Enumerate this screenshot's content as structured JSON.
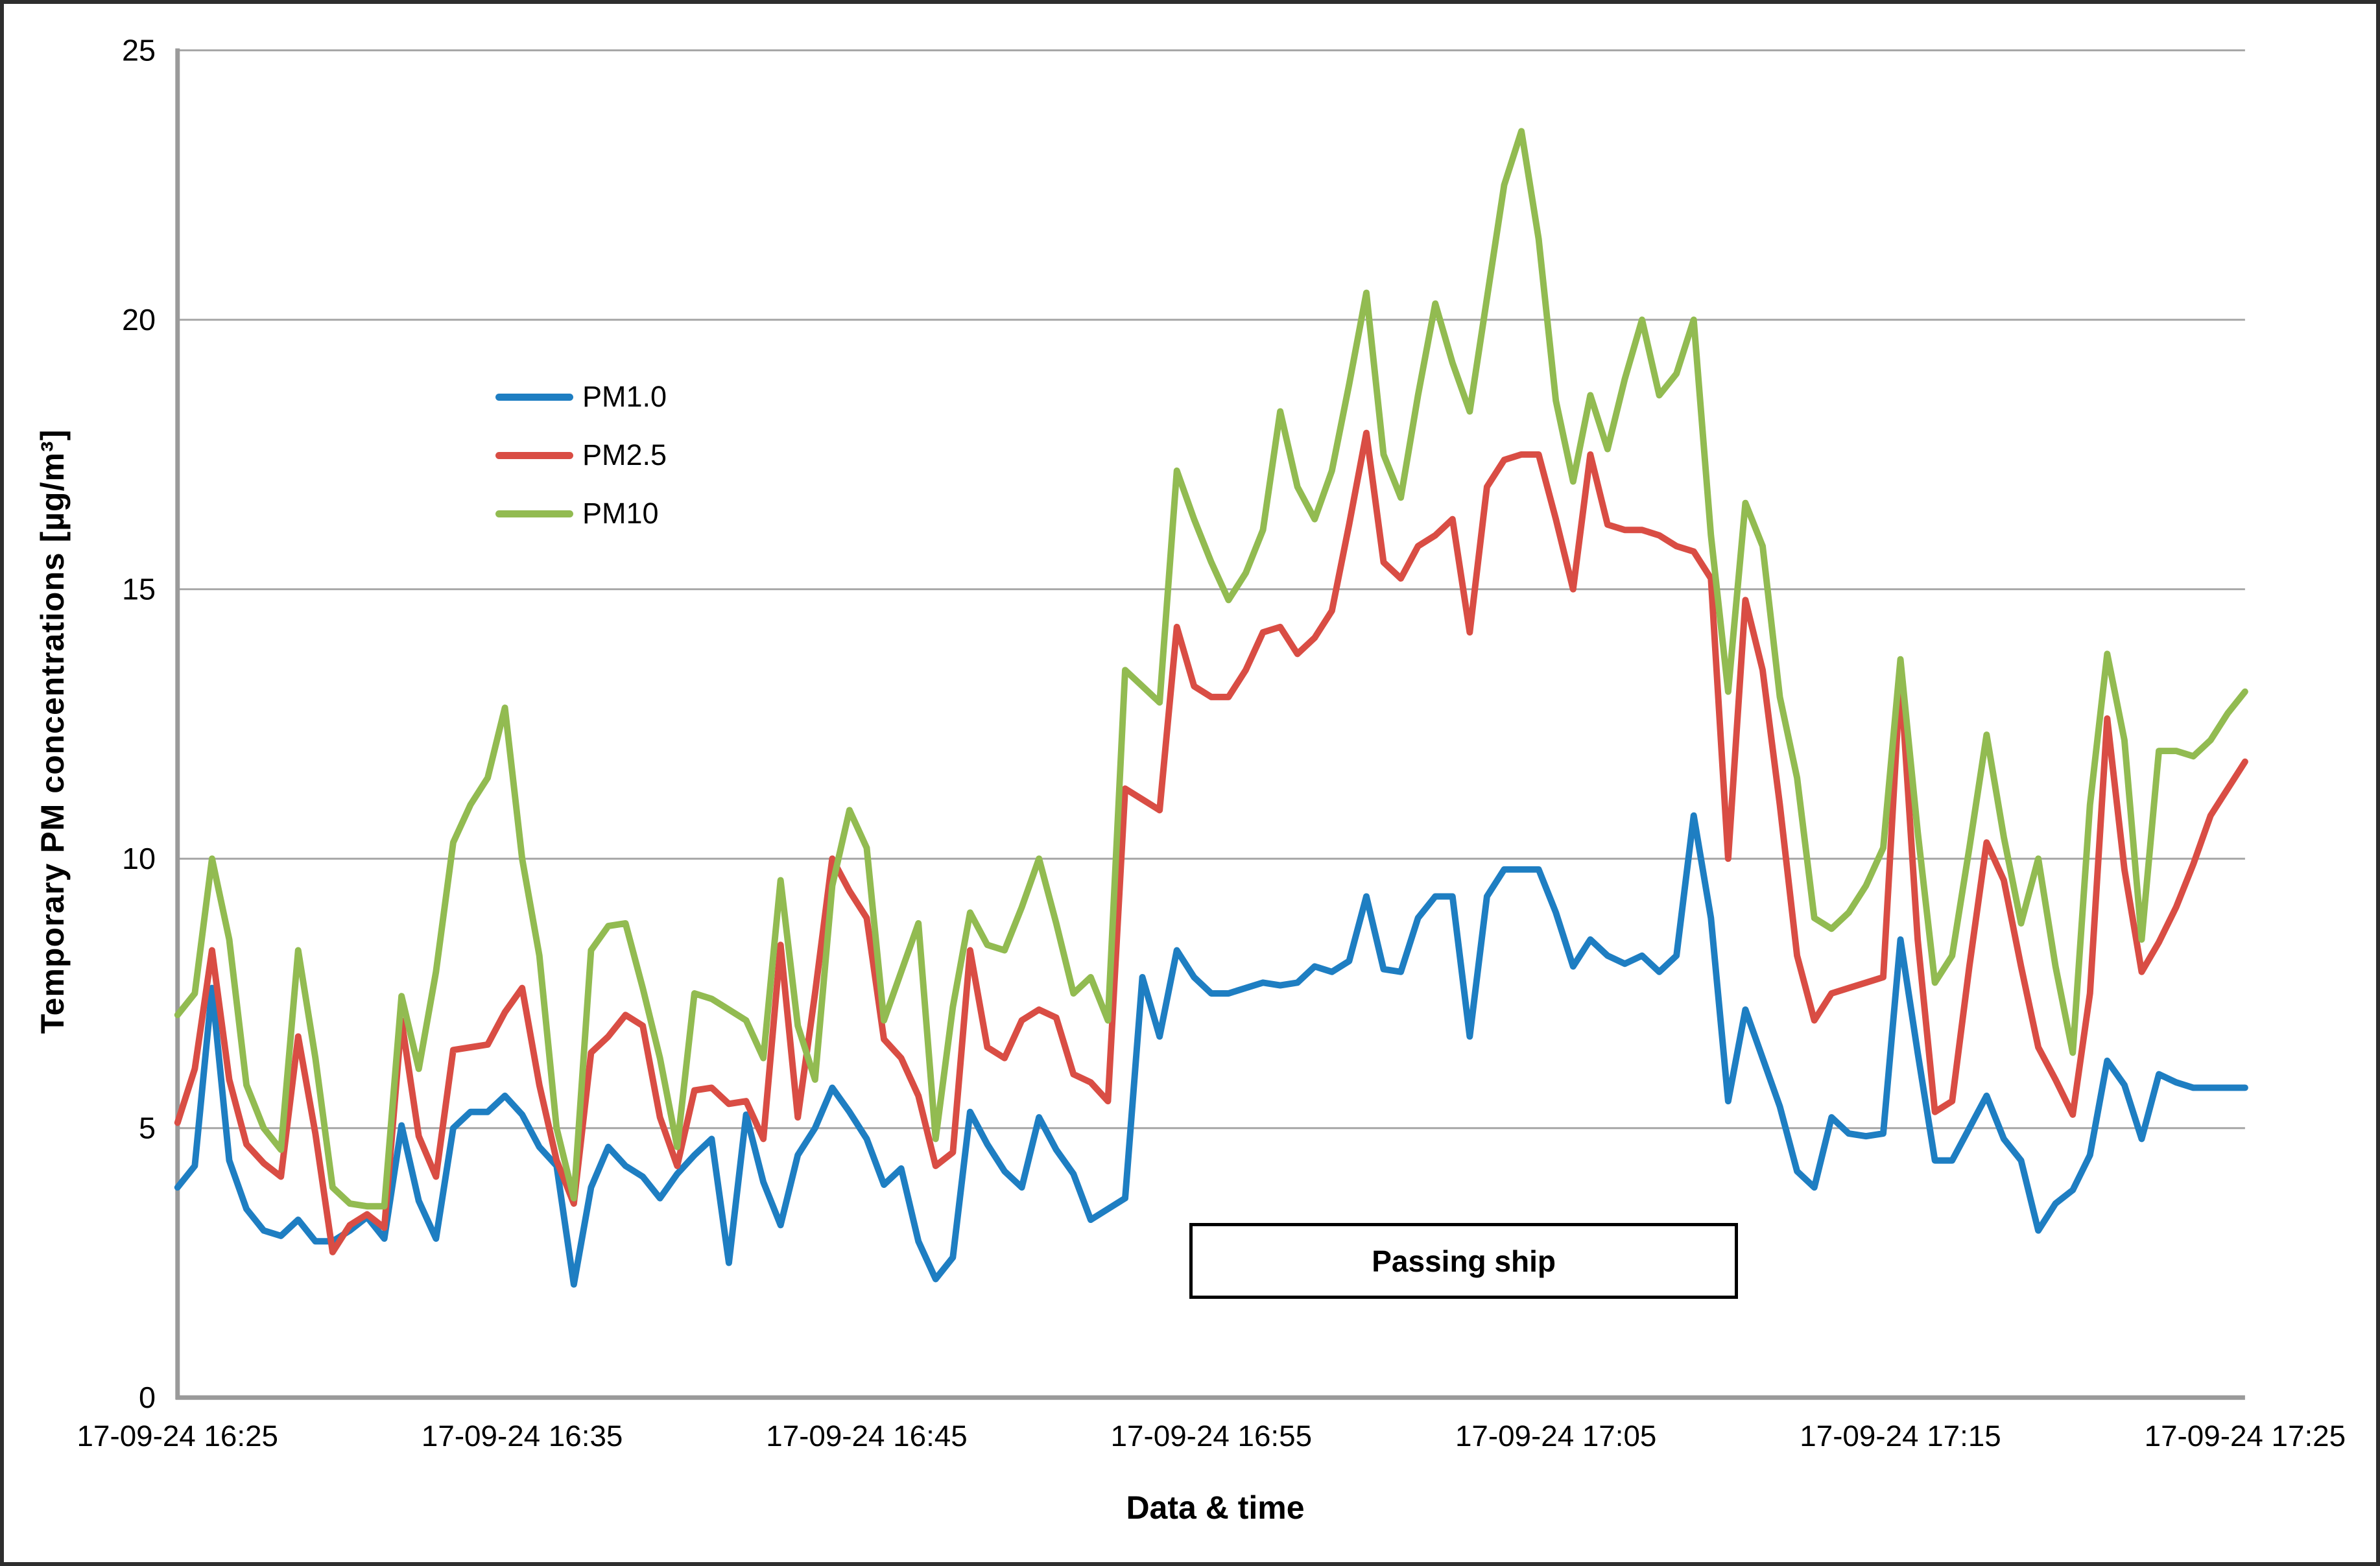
{
  "figure": {
    "x_axis_title": "Data & time",
    "y_axis_title": "Temporary PM concentrations  [µg/m³]"
  },
  "colors": {
    "axis": "#9a9a9a",
    "grid": "#a6a6a6",
    "border": "#2e2e2e",
    "background": "#ffffff",
    "pm1": "#1e7ec2",
    "pm25": "#d94d44",
    "pm10": "#92bb51"
  },
  "chart_data": {
    "type": "line",
    "title": "",
    "xlabel": "Data & time",
    "ylabel": "Temporary PM concentrations  [µg/m³]",
    "ylim": [
      0,
      25
    ],
    "yticks": [
      0,
      5,
      10,
      15,
      20,
      25
    ],
    "grid": "horizontal",
    "legend_position": "inside-upper-left",
    "n_points": 121,
    "sample_interval_seconds": 30,
    "x_tick_indices": [
      0,
      20,
      40,
      60,
      80,
      100,
      120
    ],
    "x_tick_labels": [
      "17-09-24 16:25",
      "17-09-24 16:35",
      "17-09-24 16:45",
      "17-09-24 16:55",
      "17-09-24 17:05",
      "17-09-24 17:15",
      "17-09-24 17:25"
    ],
    "series": [
      {
        "name": "PM1.0",
        "color": "#1e7ec2",
        "values": [
          3.9,
          4.3,
          7.6,
          4.4,
          3.5,
          3.1,
          3.0,
          3.3,
          2.9,
          2.9,
          3.1,
          3.35,
          2.95,
          5.05,
          3.65,
          2.95,
          5.0,
          5.3,
          5.3,
          5.6,
          5.25,
          4.65,
          4.3,
          2.1,
          3.9,
          4.65,
          4.3,
          4.1,
          3.7,
          4.15,
          4.5,
          4.8,
          2.5,
          5.25,
          4.0,
          3.2,
          4.5,
          5.0,
          5.75,
          5.3,
          4.8,
          3.95,
          4.25,
          2.9,
          2.2,
          2.6,
          5.3,
          4.7,
          4.2,
          3.9,
          5.2,
          4.6,
          4.15,
          3.3,
          3.5,
          3.7,
          7.8,
          6.7,
          8.3,
          7.8,
          7.5,
          7.5,
          7.6,
          7.7,
          7.65,
          7.7,
          8.0,
          7.9,
          8.1,
          9.3,
          7.95,
          7.9,
          8.9,
          9.3,
          9.3,
          6.7,
          9.3,
          9.8,
          9.8,
          9.8,
          9.0,
          8.0,
          8.5,
          8.2,
          8.05,
          8.2,
          7.9,
          8.2,
          10.8,
          8.9,
          5.5,
          7.2,
          6.3,
          5.4,
          4.2,
          3.9,
          5.2,
          4.9,
          4.85,
          4.9,
          8.5,
          6.4,
          4.4,
          4.4,
          5.0,
          5.6,
          4.8,
          4.4,
          3.1,
          3.6,
          3.85,
          4.5,
          6.25,
          5.8,
          4.8,
          6.0,
          5.85,
          5.75,
          5.75,
          5.75,
          5.75
        ]
      },
      {
        "name": "PM2.5",
        "color": "#d94d44",
        "values": [
          5.1,
          6.1,
          8.3,
          5.9,
          4.7,
          4.35,
          4.1,
          6.7,
          4.9,
          2.7,
          3.2,
          3.4,
          3.15,
          7.0,
          4.85,
          4.1,
          6.45,
          6.5,
          6.55,
          7.15,
          7.6,
          5.8,
          4.4,
          3.6,
          6.4,
          6.7,
          7.1,
          6.9,
          5.2,
          4.3,
          5.7,
          5.75,
          5.45,
          5.5,
          4.8,
          8.4,
          5.2,
          7.5,
          10.0,
          9.4,
          8.9,
          6.65,
          6.3,
          5.6,
          4.3,
          4.55,
          8.3,
          6.5,
          6.3,
          7.0,
          7.2,
          7.05,
          6.0,
          5.85,
          5.5,
          11.3,
          11.1,
          10.9,
          14.3,
          13.2,
          13.0,
          13.0,
          13.5,
          14.2,
          14.3,
          13.8,
          14.1,
          14.6,
          16.2,
          17.9,
          15.5,
          15.2,
          15.8,
          16.0,
          16.3,
          14.2,
          16.9,
          17.4,
          17.5,
          17.5,
          16.3,
          15.0,
          17.5,
          16.2,
          16.1,
          16.1,
          16.0,
          15.8,
          15.7,
          15.2,
          10.0,
          14.8,
          13.5,
          11.0,
          8.2,
          7.0,
          7.5,
          7.6,
          7.7,
          7.8,
          13.4,
          8.5,
          5.3,
          5.5,
          8.0,
          10.3,
          9.6,
          8.0,
          6.5,
          5.9,
          5.25,
          7.5,
          12.6,
          9.8,
          7.9,
          8.45,
          9.1,
          9.9,
          10.8,
          11.3,
          11.8
        ]
      },
      {
        "name": "PM10",
        "color": "#92bb51",
        "values": [
          7.1,
          7.5,
          10.0,
          8.5,
          5.8,
          5.0,
          4.6,
          8.3,
          6.3,
          3.9,
          3.6,
          3.55,
          3.55,
          7.45,
          6.1,
          7.9,
          10.3,
          11.0,
          11.5,
          12.8,
          10.0,
          8.2,
          5.0,
          3.7,
          8.3,
          8.75,
          8.8,
          7.6,
          6.3,
          4.65,
          7.5,
          7.4,
          7.2,
          7.0,
          6.3,
          9.6,
          6.9,
          5.9,
          9.5,
          10.9,
          10.2,
          7.0,
          7.9,
          8.8,
          4.8,
          7.25,
          9.0,
          8.4,
          8.3,
          9.1,
          10.0,
          8.8,
          7.5,
          7.8,
          7.0,
          13.5,
          13.2,
          12.9,
          17.2,
          16.3,
          15.5,
          14.8,
          15.3,
          16.1,
          18.3,
          16.9,
          16.3,
          17.2,
          18.8,
          20.5,
          17.5,
          16.7,
          18.6,
          20.3,
          19.2,
          18.3,
          20.4,
          22.5,
          23.5,
          21.5,
          18.5,
          17.0,
          18.6,
          17.6,
          18.9,
          20.0,
          18.6,
          19.0,
          20.0,
          16.0,
          13.1,
          16.6,
          15.8,
          13.0,
          11.5,
          8.9,
          8.7,
          9.0,
          9.5,
          10.2,
          13.7,
          10.5,
          7.7,
          8.2,
          10.2,
          12.3,
          10.4,
          8.8,
          10.0,
          8.0,
          6.4,
          11.0,
          13.8,
          12.2,
          8.5,
          12.0,
          12.0,
          11.9,
          12.2,
          12.7,
          13.1
        ]
      }
    ],
    "annotation": {
      "label": "Passing ship",
      "from_index": 58.5,
      "to_index": 90.2,
      "top_value": 3.35,
      "bottom_value": 1.95
    }
  }
}
